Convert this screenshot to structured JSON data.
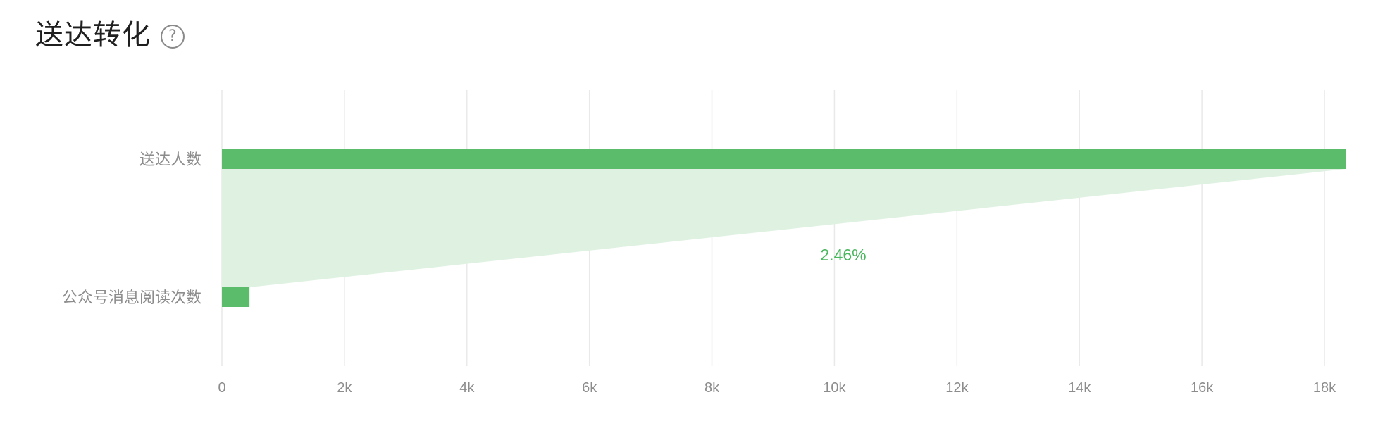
{
  "header": {
    "title": "送达转化",
    "help_icon": "question-circle-icon"
  },
  "colors": {
    "bar": "#5bbd6c",
    "funnel": "#dff2e2",
    "rate_text": "#4ab65d",
    "grid": "#e9e9e9",
    "label": "#8c8c8c"
  },
  "chart_data": {
    "type": "bar",
    "orientation": "horizontal",
    "categories": [
      "送达人数",
      "公众号消息阅读次数"
    ],
    "values": [
      18350,
      450
    ],
    "conversion_rate": "2.46%",
    "x_ticks": [
      "0",
      "2k",
      "4k",
      "6k",
      "8k",
      "10k",
      "12k",
      "14k",
      "16k",
      "18k"
    ],
    "xlim": [
      0,
      18000
    ],
    "grid": true
  }
}
